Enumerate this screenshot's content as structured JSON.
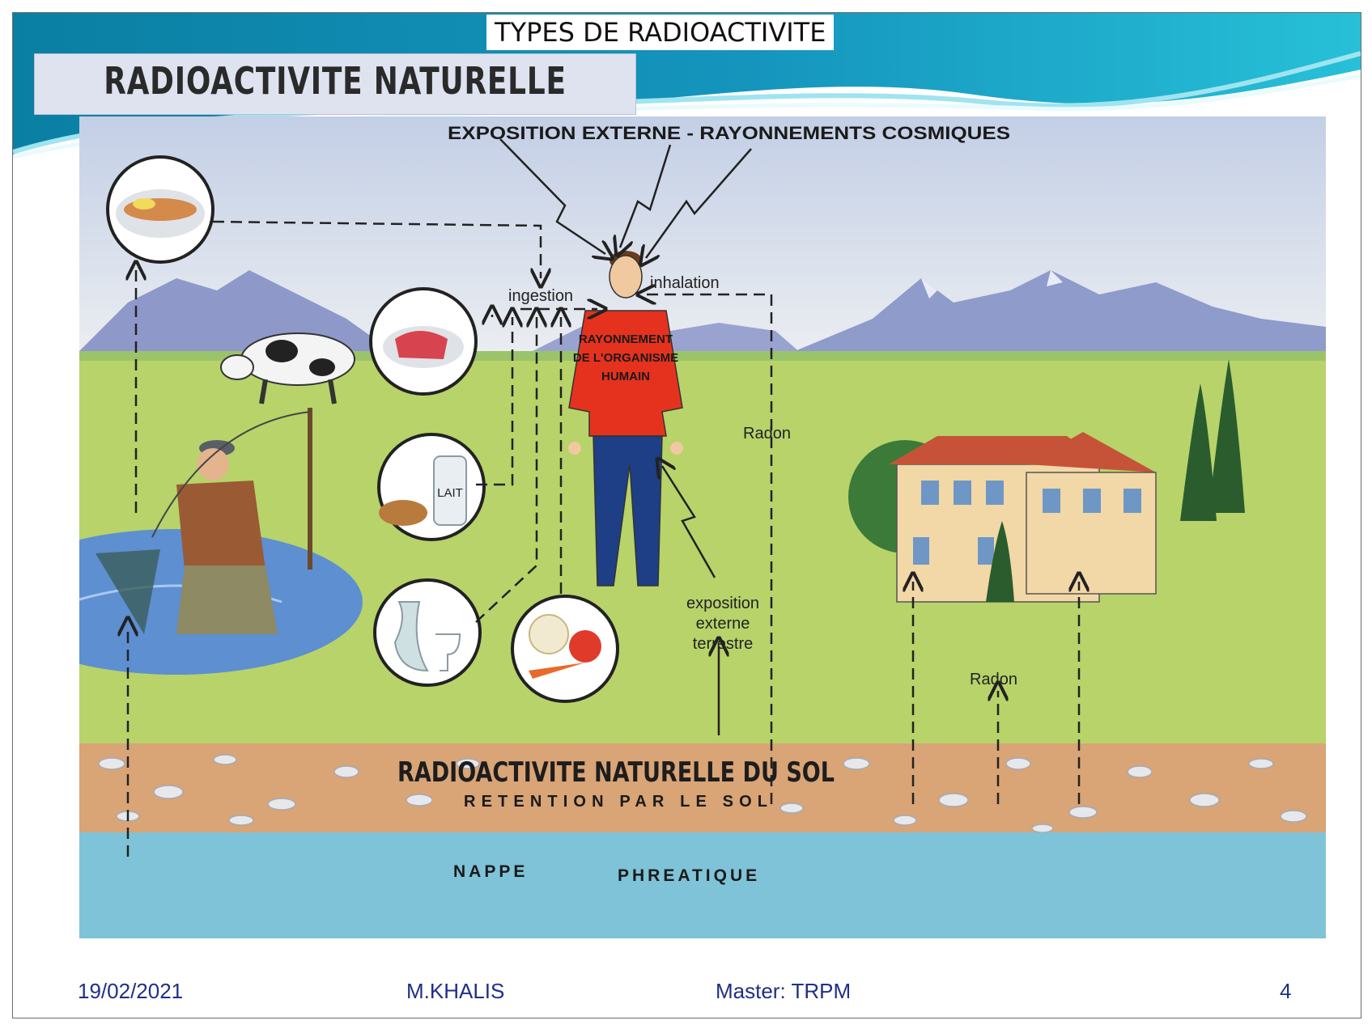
{
  "slide": {
    "title": "TYPES DE RADIOACTIVITE",
    "subtitle": "RADIOACTIVITE NATURELLE"
  },
  "diagram": {
    "labels": {
      "cosmic": "EXPOSITION EXTERNE - RAYONNEMENTS COSMIQUES",
      "ingestion": "ingestion",
      "inhalation": "inhalation",
      "body_line1": "RAYONNEMENT",
      "body_line2": "DE L'ORGANISME",
      "body_line3": "HUMAIN",
      "radon_top": "Radon",
      "exposure_line1": "exposition",
      "exposure_line2": "externe",
      "exposure_line3": "terrestre",
      "radon_house": "Radon",
      "milk": "LAIT",
      "soil": "RADIOACTIVITE NATURELLE DU SOL",
      "retention": "RETENTION PAR LE SOL",
      "nappe": "NAPPE",
      "phreatique": "PHREATIQUE"
    }
  },
  "footer": {
    "date": "19/02/2021",
    "author": "M.KHALIS",
    "course": "Master: TRPM",
    "page": "4"
  },
  "colors": {
    "banner_dark": "#0a7fa3",
    "banner_light": "#27c0d8",
    "grass": "#b7d36a",
    "sky": "#cfd9ea",
    "soil": "#d9a476",
    "water": "#7fc3d8",
    "shirt": "#e5321e",
    "trousers": "#1e3f86",
    "footer_text": "#1f2f88"
  }
}
